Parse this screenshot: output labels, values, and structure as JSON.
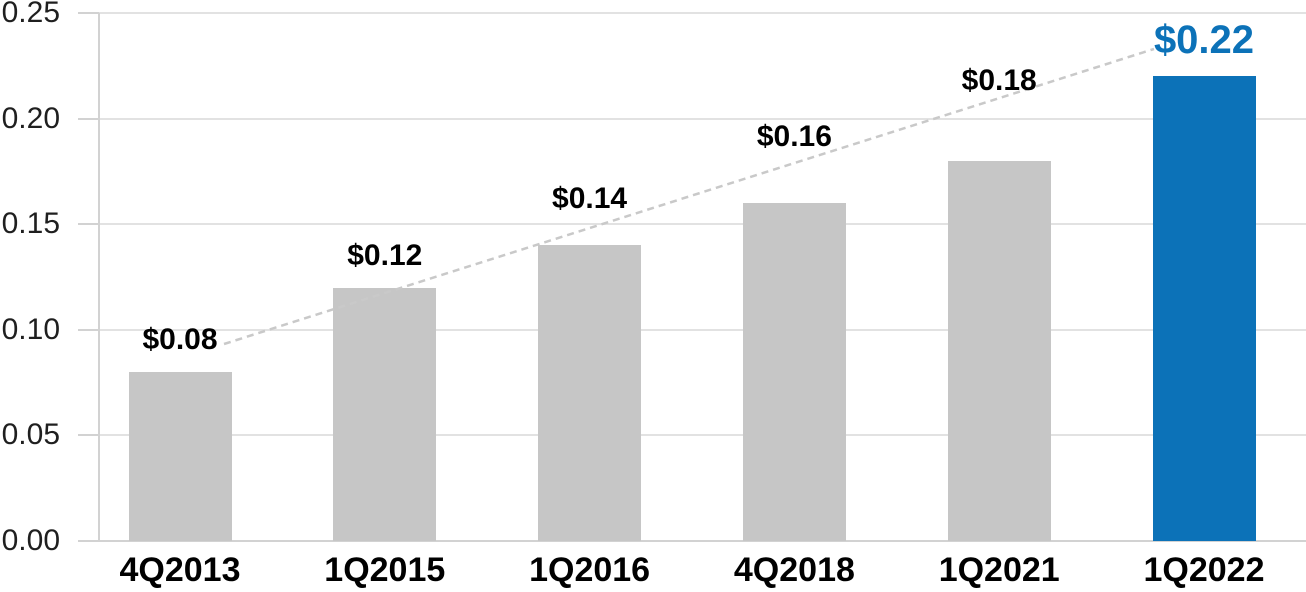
{
  "chart_data": {
    "type": "bar",
    "title": "",
    "xlabel": "",
    "ylabel": "",
    "categories": [
      "4Q2013",
      "1Q2015",
      "1Q2016",
      "4Q2018",
      "1Q2021",
      "1Q2022"
    ],
    "values": [
      0.08,
      0.12,
      0.14,
      0.16,
      0.18,
      0.22
    ],
    "data_labels": [
      "$0.08",
      "$0.12",
      "$0.14",
      "$0.16",
      "$0.18",
      "$0.22"
    ],
    "highlight_index": 5,
    "ylim": [
      0,
      0.25
    ],
    "ytick_step": 0.05,
    "ytick_labels": [
      "0.00",
      "0.05",
      "0.10",
      "0.15",
      "0.20",
      "0.25"
    ],
    "grid": true,
    "legend": false,
    "trendline": {
      "style": "dashed",
      "from_label": "$0.08",
      "to_label": "$0.22"
    },
    "colors": {
      "bar_default": "#C6C6C6",
      "bar_highlight": "#0C72B8",
      "label_default": "#000000",
      "label_highlight": "#0C72B8",
      "axis_text": "#1F1F1F",
      "gridline": "#E2E2E2",
      "axis_line": "#D2D2D2",
      "trendline": "#C9C9C9",
      "background": "#FFFFFF"
    }
  }
}
